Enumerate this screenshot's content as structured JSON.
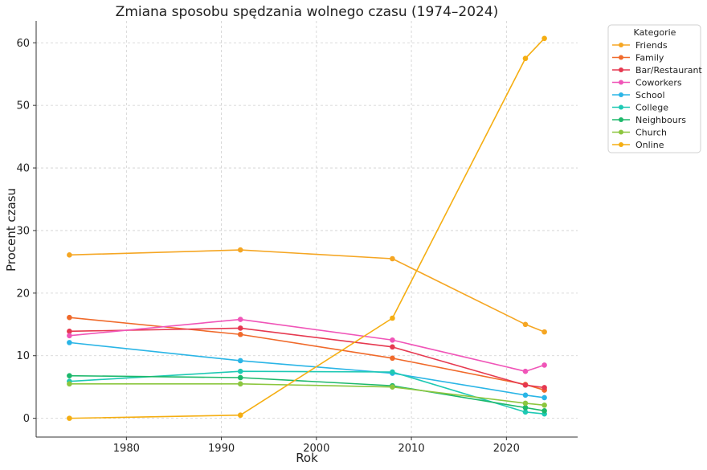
{
  "chart_data": {
    "type": "line",
    "title": "Zmiana sposobu spędzania wolnego czasu (1974–2024)",
    "xlabel": "Rok",
    "ylabel": "Procent czasu",
    "xlim": [
      1970.5,
      2027.5
    ],
    "ylim": [
      -3,
      63.5
    ],
    "x_ticks": [
      1980,
      1990,
      2000,
      2010,
      2020
    ],
    "y_ticks": [
      0,
      10,
      20,
      30,
      40,
      50,
      60
    ],
    "grid": true,
    "legend_title": "Kategorie",
    "legend_position": "outside-top-right",
    "x": [
      1974,
      1992,
      2008,
      2022,
      2024
    ],
    "series": [
      {
        "name": "Friends",
        "color": "#f5a623",
        "values": [
          26.1,
          26.9,
          25.5,
          15.0,
          13.8
        ]
      },
      {
        "name": "Family",
        "color": "#f06a2b",
        "values": [
          16.1,
          13.4,
          9.6,
          5.4,
          4.5
        ]
      },
      {
        "name": "Bar/Restaurant",
        "color": "#e63950",
        "values": [
          13.9,
          14.4,
          11.4,
          5.3,
          4.9
        ]
      },
      {
        "name": "Coworkers",
        "color": "#f055b8",
        "values": [
          13.2,
          15.8,
          12.5,
          7.5,
          8.5
        ]
      },
      {
        "name": "School",
        "color": "#2ab5e6",
        "values": [
          12.1,
          9.2,
          7.2,
          3.7,
          3.3
        ]
      },
      {
        "name": "College",
        "color": "#1ec9b4",
        "values": [
          5.9,
          7.5,
          7.4,
          1.0,
          0.7
        ]
      },
      {
        "name": "Neighbours",
        "color": "#1db86b",
        "values": [
          6.8,
          6.5,
          5.2,
          1.7,
          1.2
        ]
      },
      {
        "name": "Church",
        "color": "#8cc63f",
        "values": [
          5.5,
          5.5,
          5.0,
          2.4,
          2.1
        ]
      },
      {
        "name": "Online",
        "color": "#f5ae12",
        "values": [
          0.0,
          0.5,
          16.0,
          57.5,
          60.7
        ]
      }
    ]
  }
}
